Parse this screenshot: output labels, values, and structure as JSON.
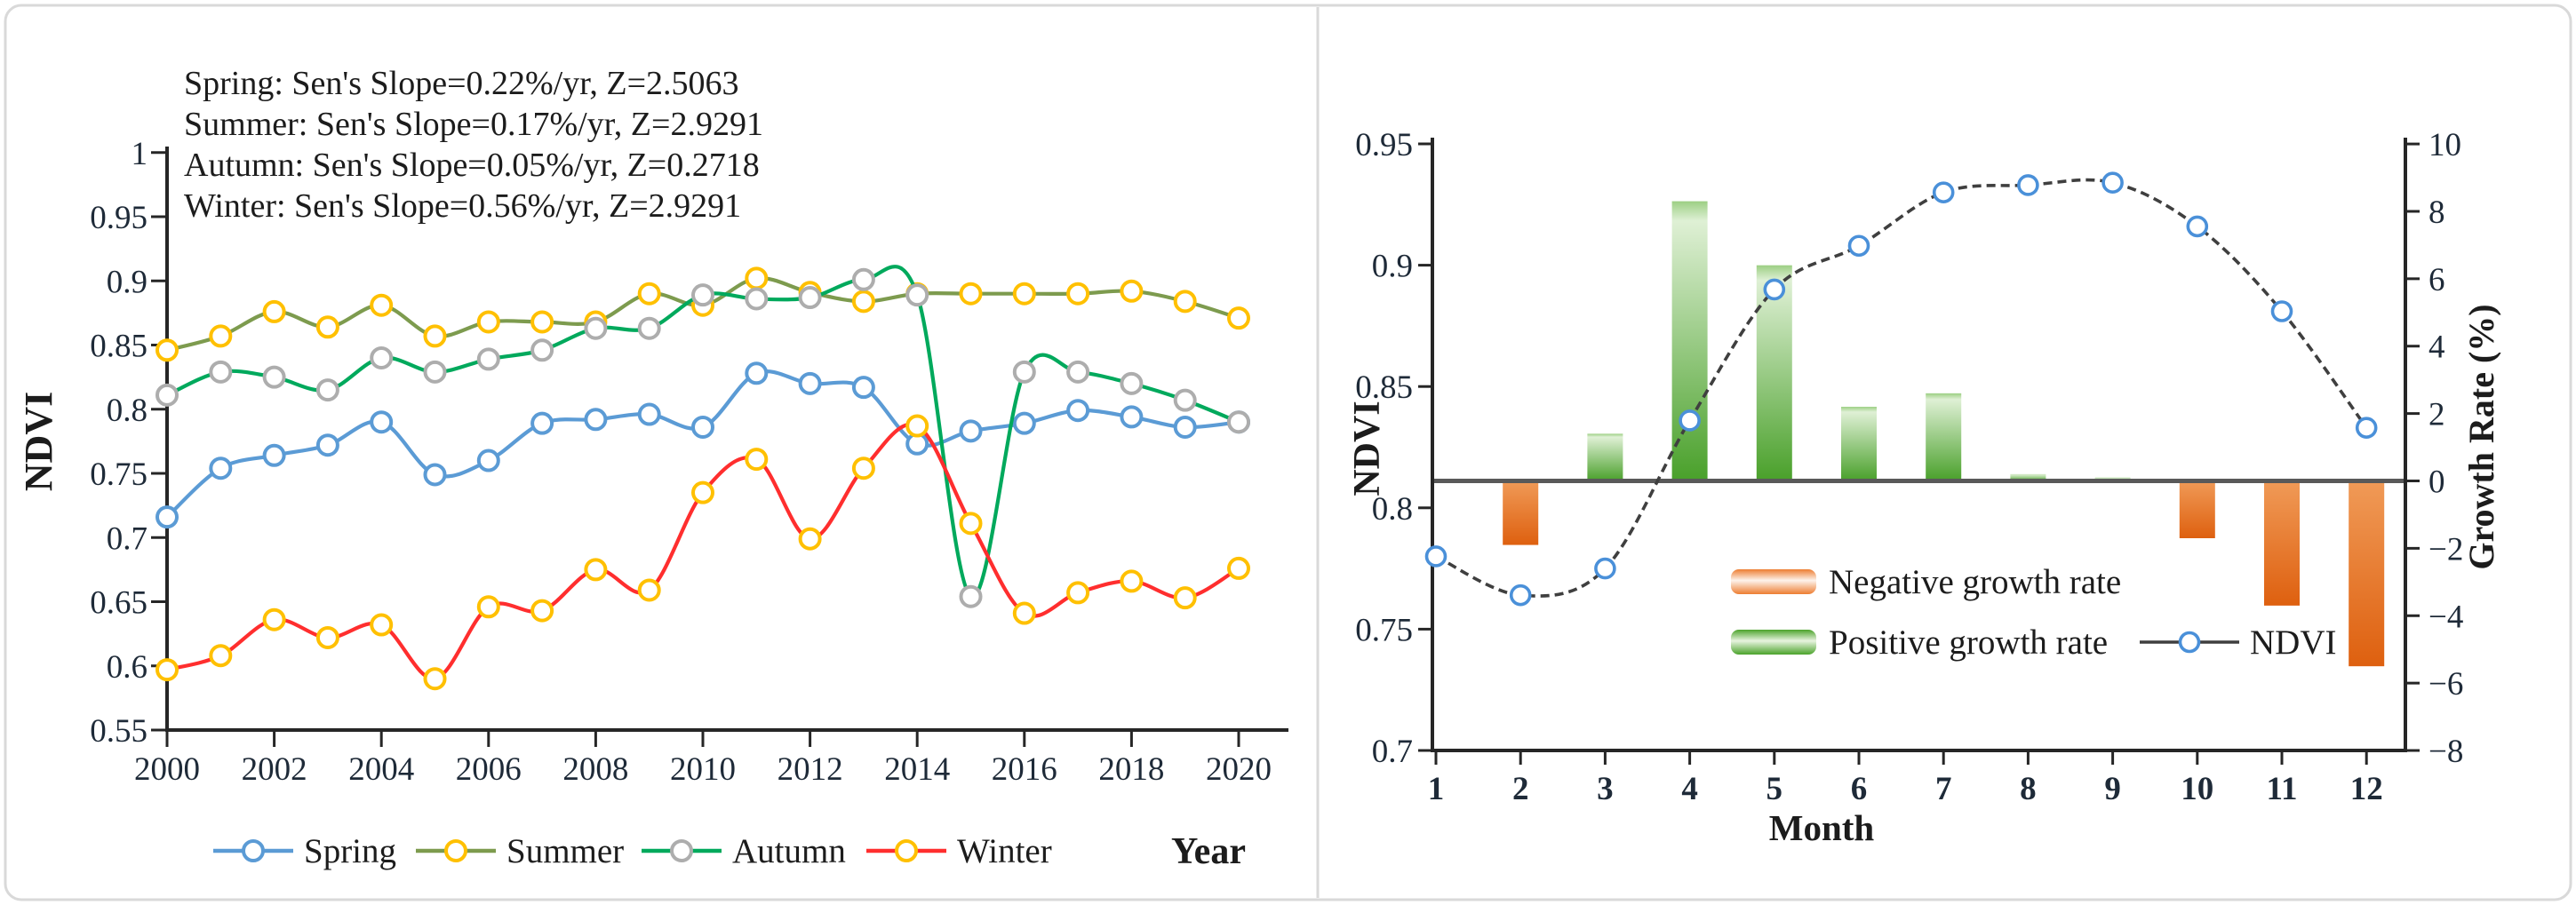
{
  "figure": {
    "background": "#ffffff",
    "border_color": "#d9d9d9"
  },
  "chart_data": [
    {
      "id": "seasonal-ndvi-trends",
      "type": "line",
      "xlabel": "Year",
      "ylabel": "NDVI",
      "xlim": [
        2000,
        2020
      ],
      "ylim": [
        0.55,
        1.0
      ],
      "ytick_step": 0.05,
      "ytick_labels": [
        "0.55",
        "0.6",
        "0.65",
        "0.7",
        "0.75",
        "0.8",
        "0.85",
        "0.9",
        "0.95",
        "1"
      ],
      "xtick_labels": [
        "2000",
        "2002",
        "2004",
        "2006",
        "2008",
        "2010",
        "2012",
        "2014",
        "2016",
        "2018",
        "2020"
      ],
      "grid": false,
      "legend_position": "bottom",
      "annotations": [
        "Spring: Sen's Slope=0.22%/yr, Z=2.5063",
        "Summer: Sen's Slope=0.17%/yr, Z=2.9291",
        "Autumn: Sen's Slope=0.05%/yr, Z=0.2718",
        "Winter: Sen's Slope=0.56%/yr, Z=2.9291"
      ],
      "years": [
        2000,
        2001,
        2002,
        2003,
        2004,
        2005,
        2006,
        2007,
        2008,
        2009,
        2010,
        2011,
        2012,
        2013,
        2014,
        2015,
        2016,
        2017,
        2018,
        2019,
        2020
      ],
      "series": [
        {
          "name": "Spring",
          "line_color": "#5B9BD5",
          "marker_color": "#5B9BD5",
          "values": [
            0.716,
            0.754,
            0.764,
            0.772,
            0.79,
            0.749,
            0.76,
            0.789,
            0.792,
            0.796,
            0.786,
            0.828,
            0.82,
            0.817,
            0.773,
            0.783,
            0.789,
            0.799,
            0.794,
            0.786,
            0.79
          ]
        },
        {
          "name": "Summer",
          "line_color": "#7D9B4E",
          "marker_color": "#FFC000",
          "values": [
            0.846,
            0.857,
            0.876,
            0.864,
            0.881,
            0.857,
            0.868,
            0.868,
            0.868,
            0.89,
            0.881,
            0.902,
            0.891,
            0.884,
            0.89,
            0.89,
            0.89,
            0.89,
            0.892,
            0.884,
            0.871
          ]
        },
        {
          "name": "Autumn",
          "line_color": "#00A95C",
          "marker_color": "#ADADAD",
          "values": [
            0.811,
            0.829,
            0.825,
            0.815,
            0.84,
            0.829,
            0.839,
            0.846,
            0.863,
            0.863,
            0.889,
            0.886,
            0.887,
            0.901,
            0.889,
            0.654,
            0.829,
            0.829,
            0.82,
            0.807,
            0.79
          ]
        },
        {
          "name": "Winter",
          "line_color": "#FF2E2E",
          "marker_color": "#FFC000",
          "values": [
            0.597,
            0.608,
            0.636,
            0.622,
            0.632,
            0.59,
            0.646,
            0.643,
            0.675,
            0.659,
            0.735,
            0.761,
            0.699,
            0.754,
            0.787,
            0.711,
            0.641,
            0.657,
            0.666,
            0.653,
            0.676
          ]
        }
      ]
    },
    {
      "id": "monthly-ndvi-growth-rate",
      "type": "line+bar",
      "xlabel": "Month",
      "ylabel_left": "NDVI",
      "ylabel_right": "Growth Rate (%)",
      "xlim": [
        1,
        12
      ],
      "ylim_left": [
        0.7,
        0.95
      ],
      "ylim_right": [
        -8,
        10
      ],
      "ytick_labels_left": [
        "0.7",
        "0.75",
        "0.8",
        "0.85",
        "0.9",
        "0.95"
      ],
      "ytick_labels_right": [
        "10",
        "8",
        "6",
        "4",
        "2",
        "0",
        "−2",
        "−4",
        "−6",
        "−8"
      ],
      "months": [
        1,
        2,
        3,
        4,
        5,
        6,
        7,
        8,
        9,
        10,
        11,
        12
      ],
      "ndvi": [
        0.78,
        0.764,
        0.775,
        0.836,
        0.89,
        0.908,
        0.93,
        0.933,
        0.934,
        0.916,
        0.881,
        0.833
      ],
      "growth_rate": [
        0,
        -1.9,
        1.4,
        8.3,
        6.4,
        2.2,
        2.6,
        0.2,
        0.1,
        -1.7,
        -3.7,
        -5.5
      ],
      "legend": [
        {
          "label": "Negative growth rate",
          "color": "#ED7D31"
        },
        {
          "label": "Positive growth rate",
          "color": "#4BA32B"
        },
        {
          "label": "NDVI",
          "color": "#3F3F3F"
        }
      ],
      "colors": {
        "bar_positive_dark": "#49A02A",
        "bar_positive_light": "#DFF0D5",
        "bar_negative_dark": "#DE600F",
        "bar_negative_light": "#F09A57",
        "ndvi_line": "#3F3F3F",
        "ndvi_marker": "#4A90D9",
        "zero_line": "#595959"
      }
    }
  ]
}
